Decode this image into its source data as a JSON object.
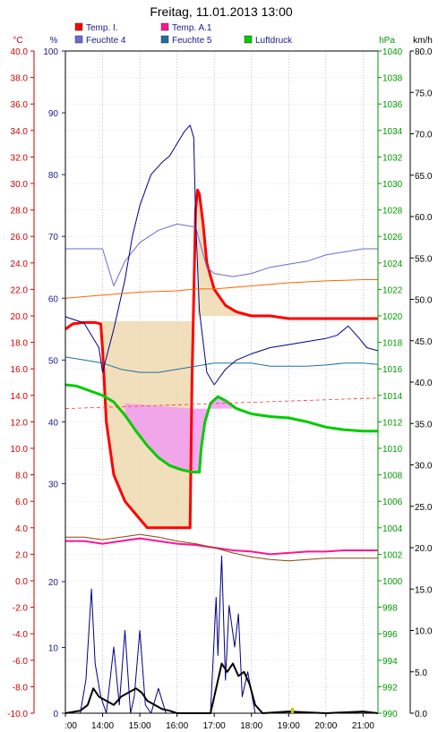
{
  "chart_data": {
    "type": "line",
    "title": "Freitag, 11.01.2013  13:00",
    "legend": {
      "placement": "top",
      "items": [
        {
          "label": "Temp. I.",
          "color": "#ff0000"
        },
        {
          "label": "Temp. A.1",
          "color": "#ff1493"
        },
        {
          "label": "Feuchte 4",
          "color": "#6b6bd6"
        },
        {
          "label": "Feuchte 5",
          "color": "#1f6fa0"
        },
        {
          "label": "Luftdruck",
          "color": "#00cc00"
        }
      ]
    },
    "axes": {
      "temperature": {
        "unit": "°C",
        "min": -10,
        "max": 40,
        "step": 2,
        "color": "#cc0000",
        "ticks": [
          "40.0",
          "38.0",
          "36.0",
          "34.0",
          "32.0",
          "30.0",
          "28.0",
          "26.0",
          "24.0",
          "22.0",
          "20.0",
          "18.0",
          "16.0",
          "14.0",
          "12.0",
          "10.0",
          "8.0",
          "6.0",
          "4.0",
          "2.0",
          "0.0",
          "-2.0",
          "-4.0",
          "-6.0",
          "-8.0",
          "-10.0"
        ]
      },
      "humidity": {
        "unit": "%",
        "color": "#1a1a8c",
        "ticks": [
          "100",
          "90",
          "80",
          "70",
          "60",
          "50",
          "40",
          "30"
        ],
        "range": [
          25,
          100
        ]
      },
      "humidity_lower": {
        "ticks": [
          "20",
          "10",
          "0"
        ],
        "range": [
          0,
          20
        ]
      },
      "pressure": {
        "unit": "hPa",
        "min": 990,
        "max": 1040,
        "step": 2,
        "color": "#009900",
        "ticks": [
          "1040",
          "1038",
          "1036",
          "1034",
          "1032",
          "1030",
          "1028",
          "1026",
          "1024",
          "1022",
          "1020",
          "1018",
          "1016",
          "1014",
          "1012",
          "1010",
          "1008",
          "1006",
          "1004",
          "1002",
          "1000",
          "998",
          "996",
          "994",
          "992",
          "990"
        ]
      },
      "wind": {
        "unit": "km/h",
        "min": 0,
        "max": 80,
        "color": "#000000",
        "ticks": [
          "80.0",
          "75.0",
          "70.0",
          "65.0",
          "60.0",
          "55.0",
          "50.0",
          "45.0",
          "40.0",
          "35.0",
          "30.0",
          "25.0",
          "20.0",
          "15.0",
          "10.0",
          "5.0",
          "0.0"
        ]
      },
      "time": {
        "ticks": [
          ":00",
          "14:00",
          "15:00",
          "16:00",
          "17:00",
          "18:00",
          "19:00",
          "20:00",
          "21:00"
        ],
        "range": [
          13.0,
          21.4
        ]
      }
    },
    "grid": true,
    "series": [
      {
        "name": "Temp. I.",
        "color": "#ff0000",
        "axis": "temperature",
        "x": [
          13.0,
          13.2,
          13.5,
          13.8,
          13.95,
          14.0,
          14.1,
          14.3,
          14.6,
          14.9,
          15.2,
          15.5,
          15.8,
          16.1,
          16.35,
          16.4,
          16.5,
          16.55,
          16.6,
          16.7,
          16.8,
          17.0,
          17.3,
          17.6,
          18.0,
          18.5,
          19.0,
          19.5,
          20.0,
          20.5,
          21.0,
          21.4
        ],
        "y": [
          19.0,
          19.4,
          19.5,
          19.5,
          19.4,
          17.5,
          12.0,
          8.0,
          6.0,
          5.0,
          4.0,
          4.0,
          4.0,
          4.0,
          4.0,
          15.0,
          28.0,
          29.5,
          29.2,
          27.0,
          24.0,
          22.0,
          20.8,
          20.3,
          20.0,
          20.0,
          19.8,
          19.8,
          19.8,
          19.8,
          19.8,
          19.8
        ]
      },
      {
        "name": "Temp. A.1",
        "color": "#ff1493",
        "axis": "temperature",
        "x": [
          13.0,
          13.5,
          14.0,
          14.5,
          15.0,
          15.5,
          16.0,
          16.5,
          17.0,
          17.5,
          18.0,
          18.5,
          19.0,
          19.5,
          20.0,
          20.5,
          21.0,
          21.4
        ],
        "y": [
          3.0,
          3.0,
          2.8,
          3.0,
          3.2,
          3.0,
          2.8,
          2.7,
          2.5,
          2.3,
          2.2,
          2.0,
          2.1,
          2.2,
          2.2,
          2.3,
          2.3,
          2.3
        ]
      },
      {
        "name": "Feuchte 4",
        "color": "#6b6bd6",
        "axis": "humidity",
        "x": [
          13.0,
          13.5,
          14.0,
          14.3,
          14.6,
          15.0,
          15.5,
          16.0,
          16.5,
          16.8,
          17.0,
          17.5,
          18.0,
          18.5,
          19.0,
          19.5,
          20.0,
          20.5,
          21.0,
          21.4
        ],
        "y": [
          68,
          68,
          68,
          62,
          66,
          69,
          71,
          72,
          71.5,
          65,
          64,
          63.5,
          64,
          65,
          65.5,
          66,
          67,
          67.5,
          68,
          68
        ]
      },
      {
        "name": "Feuchte 5",
        "color": "#1f6fa0",
        "axis": "humidity",
        "x": [
          13.0,
          13.5,
          14.0,
          14.5,
          15.0,
          15.5,
          16.0,
          16.5,
          17.0,
          17.5,
          18.0,
          18.5,
          19.0,
          19.5,
          20.0,
          20.5,
          21.0,
          21.4
        ],
        "y": [
          50.5,
          50,
          49.5,
          48.5,
          48,
          48,
          48.5,
          49,
          49.5,
          49.5,
          49.5,
          49,
          49,
          49,
          49.2,
          49.5,
          49.5,
          49.3
        ]
      },
      {
        "name": "Luftdruck",
        "color": "#00cc00",
        "axis": "pressure",
        "x": [
          13.0,
          13.3,
          13.6,
          14.0,
          14.3,
          14.6,
          14.9,
          15.2,
          15.5,
          15.8,
          16.1,
          16.4,
          16.6,
          16.65,
          16.75,
          16.9,
          17.1,
          17.3,
          17.6,
          18.0,
          18.5,
          19.0,
          19.5,
          20.0,
          20.5,
          21.0,
          21.4
        ],
        "y": [
          1014.8,
          1014.7,
          1014.4,
          1014.0,
          1013.5,
          1012.5,
          1011.3,
          1010.2,
          1009.3,
          1008.7,
          1008.4,
          1008.2,
          1008.2,
          1010.0,
          1012.0,
          1013.4,
          1013.9,
          1013.6,
          1013.0,
          1012.6,
          1012.4,
          1012.3,
          1012.0,
          1011.6,
          1011.4,
          1011.3,
          1011.3
        ]
      },
      {
        "name": "",
        "color": "#00008b",
        "axis": "humidity",
        "x": [
          13.0,
          13.5,
          13.9,
          14.0,
          14.3,
          14.6,
          14.8,
          15.0,
          15.3,
          15.6,
          15.8,
          16.0,
          16.2,
          16.35,
          16.45,
          16.5,
          16.6,
          16.8,
          17.0,
          17.3,
          17.6,
          18.0,
          18.5,
          19.0,
          19.5,
          20.0,
          20.3,
          20.6,
          20.9,
          21.1,
          21.4
        ],
        "y": [
          57,
          56,
          52,
          48,
          55,
          63,
          70,
          75,
          80,
          82,
          83,
          85,
          87,
          88,
          86,
          73,
          58,
          48,
          46,
          48.5,
          50,
          51,
          52,
          52.5,
          53,
          53.5,
          54,
          55.5,
          53.5,
          52,
          51.5
        ]
      },
      {
        "name": "",
        "color": "#ff6600",
        "axis": "humidity",
        "x": [
          13.0,
          14.0,
          15.0,
          16.0,
          16.5,
          17.0,
          18.0,
          19.0,
          20.0,
          21.0,
          21.4
        ],
        "y": [
          60,
          60.5,
          61,
          61.2,
          61.5,
          61.5,
          62,
          62.5,
          62.8,
          63,
          63
        ]
      },
      {
        "name": "",
        "color": "#8b4513",
        "axis": "temperature",
        "x": [
          13.0,
          13.5,
          14.0,
          14.5,
          15.0,
          15.5,
          16.0,
          16.5,
          17.0,
          17.5,
          18.0,
          18.5,
          19.0,
          19.5,
          20.0,
          20.5,
          21.0,
          21.4
        ],
        "y": [
          3.3,
          3.3,
          3.1,
          3.3,
          3.5,
          3.3,
          3.0,
          2.8,
          2.5,
          2.1,
          1.8,
          1.6,
          1.5,
          1.6,
          1.7,
          1.7,
          1.7,
          1.7
        ]
      },
      {
        "name": "",
        "color": "#000080",
        "axis": "wind",
        "x": [
          13.0,
          13.4,
          13.55,
          13.7,
          13.8,
          13.95,
          14.1,
          14.3,
          14.45,
          14.6,
          14.75,
          14.85,
          15.0,
          15.15,
          15.3,
          15.5,
          15.7,
          15.9,
          16.1,
          16.5,
          16.9,
          17.05,
          17.1,
          17.2,
          17.3,
          17.4,
          17.55,
          17.65,
          17.75,
          17.9,
          18.1,
          18.3,
          19.0,
          20.0,
          21.4
        ],
        "y": [
          0,
          0,
          4,
          15,
          6,
          2,
          0,
          8,
          1,
          10,
          0,
          2,
          10,
          1,
          0,
          3,
          0,
          0,
          0,
          0,
          0,
          14,
          7,
          19,
          4,
          13,
          8,
          12,
          2,
          5,
          0,
          0,
          0,
          0,
          0
        ]
      },
      {
        "name": "",
        "color": "#000000",
        "axis": "wind",
        "x": [
          13.0,
          13.4,
          13.6,
          13.75,
          13.9,
          14.1,
          14.3,
          14.5,
          14.7,
          14.9,
          15.05,
          15.2,
          15.4,
          15.6,
          15.8,
          16.0,
          16.5,
          16.9,
          17.05,
          17.2,
          17.35,
          17.5,
          17.65,
          17.8,
          17.95,
          18.1,
          18.3,
          19.0,
          20.0,
          21.0,
          21.4
        ],
        "y": [
          0,
          0.3,
          1,
          3,
          2,
          1.5,
          1,
          2,
          2.5,
          3,
          2.5,
          1.5,
          1,
          0.5,
          0.3,
          0,
          0,
          0,
          3,
          6,
          5,
          6,
          4.5,
          5,
          3.5,
          1,
          0,
          0.2,
          0,
          0.2,
          0
        ]
      }
    ]
  }
}
